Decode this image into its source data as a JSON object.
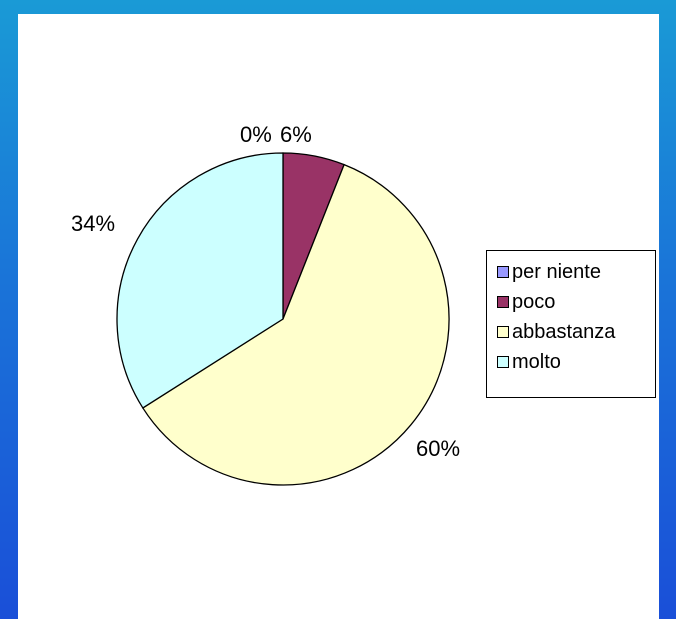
{
  "chart_data": {
    "type": "pie",
    "categories": [
      "per niente",
      "poco",
      "abbastanza",
      "molto"
    ],
    "values": [
      0,
      6,
      60,
      34
    ],
    "data_labels": [
      "0%",
      "6%",
      "60%",
      "34%"
    ],
    "colors": [
      "#9999ff",
      "#993366",
      "#ffffcc",
      "#ccffff"
    ],
    "legend_placement": "right",
    "title": ""
  }
}
